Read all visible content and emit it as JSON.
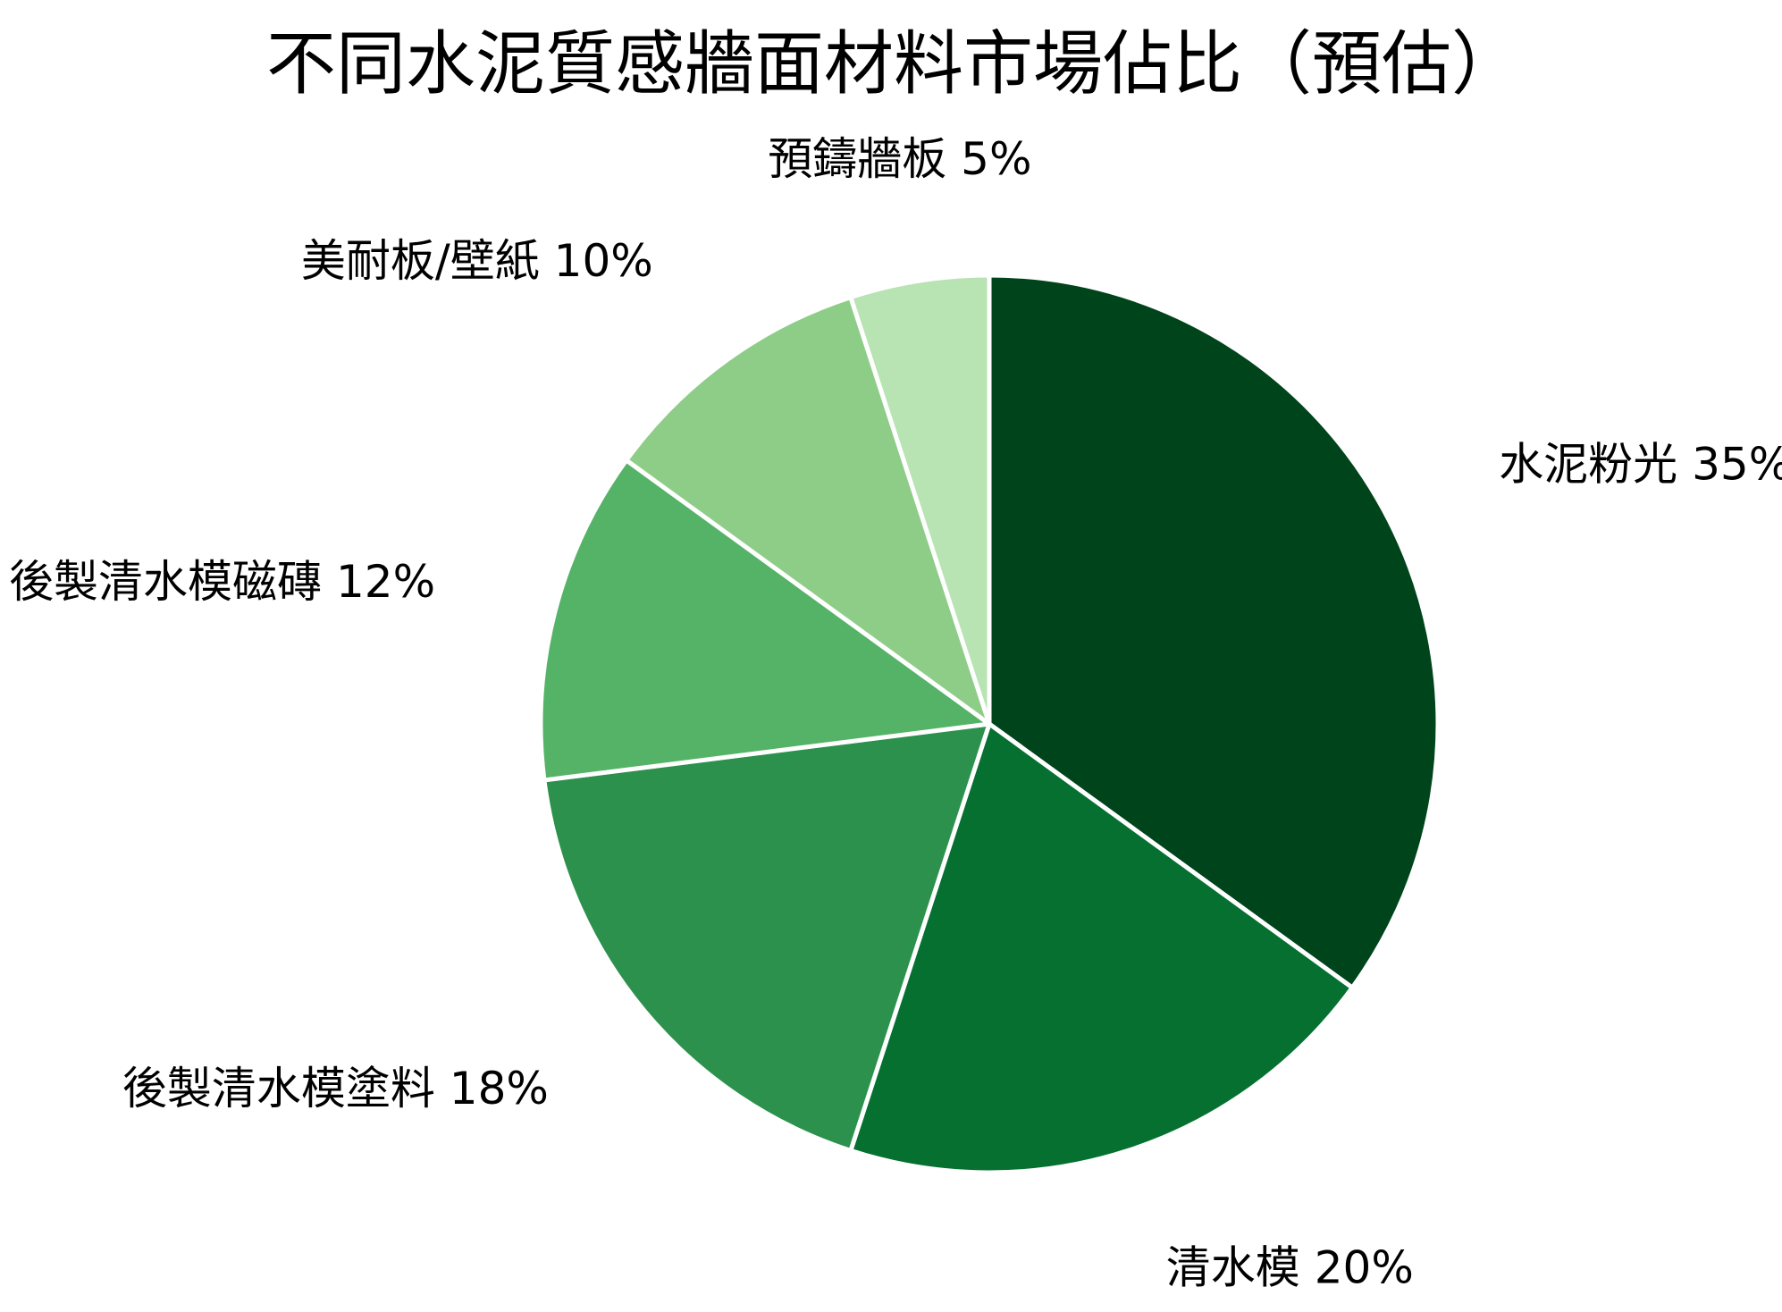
{
  "chart_data": {
    "type": "pie",
    "title": "不同水泥質感牆面材料市場佔比（預估）",
    "start_angle_deg": 90,
    "direction": "clockwise",
    "slice_border_color": "#ffffff",
    "slices": [
      {
        "label": "水泥粉光",
        "value": 35,
        "display": "水泥粉光 35%",
        "color": "#00441b"
      },
      {
        "label": "清水模",
        "value": 20,
        "display": "清水模 20%",
        "color": "#057030"
      },
      {
        "label": "後製清水模塗料",
        "value": 18,
        "display": "後製清水模塗料 18%",
        "color": "#2c914c"
      },
      {
        "label": "後製清水模磁磚",
        "value": 12,
        "display": "後製清水模磁磚 12%",
        "color": "#55b367"
      },
      {
        "label": "美耐板/壁紙",
        "value": 10,
        "display": "美耐板/壁紙 10%",
        "color": "#8ecd87"
      },
      {
        "label": "預鑄牆板",
        "value": 5,
        "display": "預鑄牆板 5%",
        "color": "#b8e3b2"
      }
    ]
  }
}
